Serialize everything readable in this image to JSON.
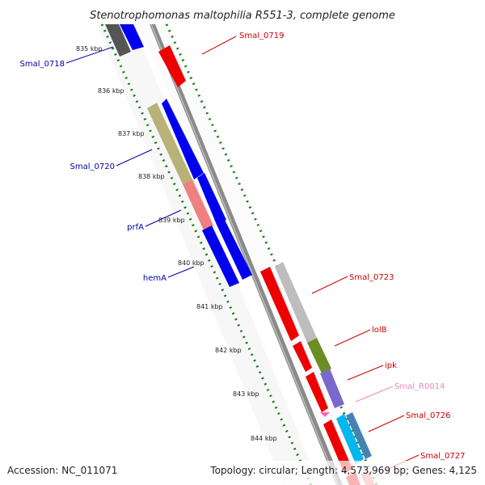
{
  "title": "Stenotrophomonas maltophilia R551-3, complete genome",
  "footer": {
    "accession": "Accession: NC_011071",
    "topology": "Topology: circular; Length: 4,573,969 bp; Genes: 4,125"
  },
  "ticks": [
    "835 kbp",
    "836 kbp",
    "837 kbp",
    "838 kbp",
    "839 kbp",
    "840 kbp",
    "841 kbp",
    "842 kbp",
    "843 kbp",
    "844 kbp"
  ],
  "gene_labels": [
    {
      "text": "Smal_0719",
      "color": "#cc0000"
    },
    {
      "text": "Smal_0718",
      "color": "#0000aa"
    },
    {
      "text": "Smal_0720",
      "color": "#0000aa"
    },
    {
      "text": "prfA",
      "color": "#0000aa"
    },
    {
      "text": "hemA",
      "color": "#0000aa"
    },
    {
      "text": "Smal_0723",
      "color": "#cc0000"
    },
    {
      "text": "lolB",
      "color": "#cc0000"
    },
    {
      "text": "ipk",
      "color": "#cc0000"
    },
    {
      "text": "Smal_R0014",
      "color": "#ee88bb"
    },
    {
      "text": "Smal_0726",
      "color": "#cc0000"
    },
    {
      "text": "Smal_0727",
      "color": "#cc0000"
    }
  ],
  "colors": {
    "forward_gene": "#ee0000",
    "reverse_gene": "#0000ee",
    "backbone": "#888888",
    "tick_line": "#1a7a1a"
  }
}
